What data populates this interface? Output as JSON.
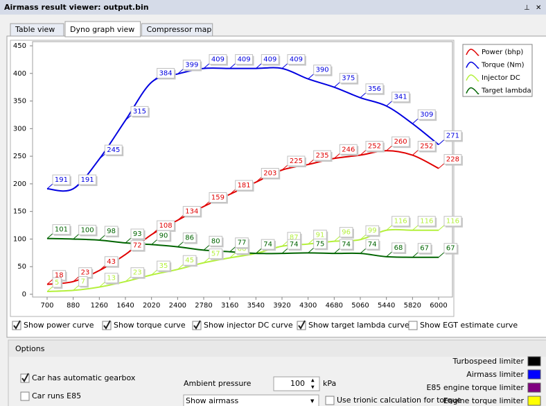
{
  "window": {
    "title": "Airmass result viewer: output.bin"
  },
  "tabs": [
    {
      "label": "Table view",
      "active": false
    },
    {
      "label": "Dyno graph view",
      "active": true
    },
    {
      "label": "Compressor map",
      "active": false
    }
  ],
  "chart_data": {
    "type": "line",
    "categories": [
      700,
      880,
      1260,
      1640,
      2020,
      2400,
      2780,
      3160,
      3540,
      3920,
      4300,
      4680,
      5060,
      5440,
      5820,
      6000
    ],
    "series": [
      {
        "name": "Power (bhp)",
        "color": "#e00000",
        "values": [
          18,
          23,
          43,
          72,
          108,
          134,
          159,
          181,
          203,
          225,
          235,
          246,
          252,
          260,
          252,
          228
        ]
      },
      {
        "name": "Torque (Nm)",
        "color": "#0000e0",
        "values": [
          191,
          191,
          245,
          315,
          384,
          399,
          409,
          409,
          409,
          409,
          390,
          375,
          356,
          341,
          309,
          271
        ]
      },
      {
        "name": "Injector DC",
        "color": "#b4f03c",
        "values": [
          5,
          7,
          13,
          23,
          35,
          45,
          57,
          66,
          74,
          87,
          91,
          96,
          99,
          116,
          116,
          116
        ]
      },
      {
        "name": "Target lambda",
        "color": "#006400",
        "values": [
          101,
          100,
          98,
          93,
          90,
          86,
          80,
          77,
          74,
          74,
          75,
          74,
          74,
          68,
          67,
          67
        ]
      }
    ],
    "ylim": [
      0,
      450
    ],
    "yticks": [
      0,
      50,
      100,
      150,
      200,
      250,
      300,
      350,
      400,
      450
    ],
    "grid": false,
    "legend": "top-right"
  },
  "curve_options": [
    {
      "label": "Show power curve",
      "checked": true
    },
    {
      "label": "Show torque curve",
      "checked": true
    },
    {
      "label": "Show injector DC curve",
      "checked": true
    },
    {
      "label": "Show target lambda curve",
      "checked": true
    },
    {
      "label": "Show EGT estimate curve",
      "checked": false
    }
  ],
  "options": {
    "title": "Options",
    "checks": [
      {
        "label": "Car has automatic gearbox",
        "checked": true
      },
      {
        "label": "Car runs E85",
        "checked": false
      }
    ],
    "ambient_label": "Ambient pressure",
    "ambient_value": "100",
    "ambient_unit": "kPa",
    "view_select": "Show airmass",
    "trionic": {
      "label": "Use trionic calculation for torque",
      "checked": false
    }
  },
  "limiters": [
    {
      "label": "Turbospeed limiter",
      "color": "#000000"
    },
    {
      "label": "Airmass limiter",
      "color": "#0000ff"
    },
    {
      "label": "E85 engine torque limiter",
      "color": "#800080"
    },
    {
      "label": "Engine torque limiter",
      "color": "#ffff00"
    }
  ]
}
